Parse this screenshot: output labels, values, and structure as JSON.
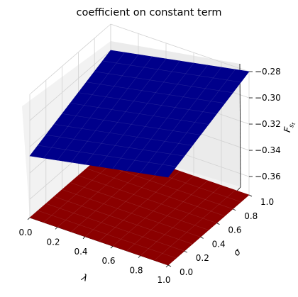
{
  "chart_data": {
    "type": "surface3d",
    "title": "coefficient on constant term",
    "xlabel": "λ",
    "ylabel": "σ",
    "zlabel": "F_{s_t}",
    "xlim": [
      0.0,
      1.0
    ],
    "ylim": [
      0.0,
      1.0
    ],
    "zlim": [
      -0.374,
      -0.28
    ],
    "xticks": [
      "0.0",
      "0.2",
      "0.4",
      "0.6",
      "0.8",
      "1.0"
    ],
    "yticks": [
      "0.0",
      "0.2",
      "0.4",
      "0.6",
      "0.8",
      "1.0"
    ],
    "zticks": [
      "−0.28",
      "−0.30",
      "−0.32",
      "−0.34",
      "−0.36"
    ],
    "zticks_values": [
      -0.28,
      -0.3,
      -0.32,
      -0.34,
      -0.36
    ],
    "grid": true,
    "series": [
      {
        "color": "#00008b",
        "corners": {
          "x0y0": -0.327,
          "x1y0": -0.307,
          "x0y1": -0.3,
          "x1y1": -0.28
        }
      },
      {
        "color": "#8b0000",
        "corners": {
          "x0y0": -0.374,
          "x1y0": -0.374,
          "x0y1": -0.374,
          "x1y1": -0.374
        }
      }
    ]
  }
}
